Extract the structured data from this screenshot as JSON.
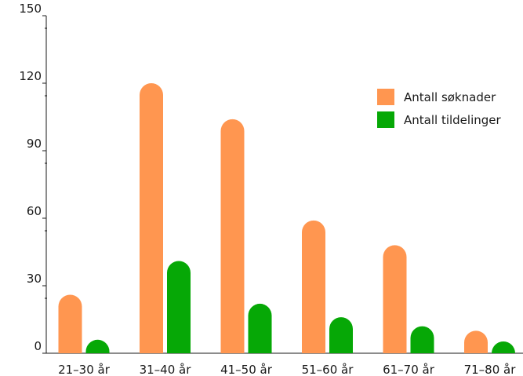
{
  "chart_data": {
    "type": "bar",
    "categories": [
      "21–30 år",
      "31–40 år",
      "41–50 år",
      "51–60 år",
      "61–70 år",
      "71–80 år"
    ],
    "series": [
      {
        "name": "Antall søknader",
        "color": "#FF9650",
        "values": [
          26,
          120,
          104,
          59,
          48,
          10
        ]
      },
      {
        "name": "Antall tildelinger",
        "color": "#06A806",
        "values": [
          6,
          41,
          22,
          16,
          12,
          4
        ]
      }
    ],
    "ylim": [
      0,
      150
    ],
    "yticks": [
      0,
      30,
      60,
      90,
      120,
      150
    ],
    "ytick_labels": [
      "0",
      "30",
      "60",
      "90",
      "120",
      "150"
    ],
    "legend_position": "right",
    "grid": false,
    "title": "",
    "xlabel": "",
    "ylabel": ""
  }
}
